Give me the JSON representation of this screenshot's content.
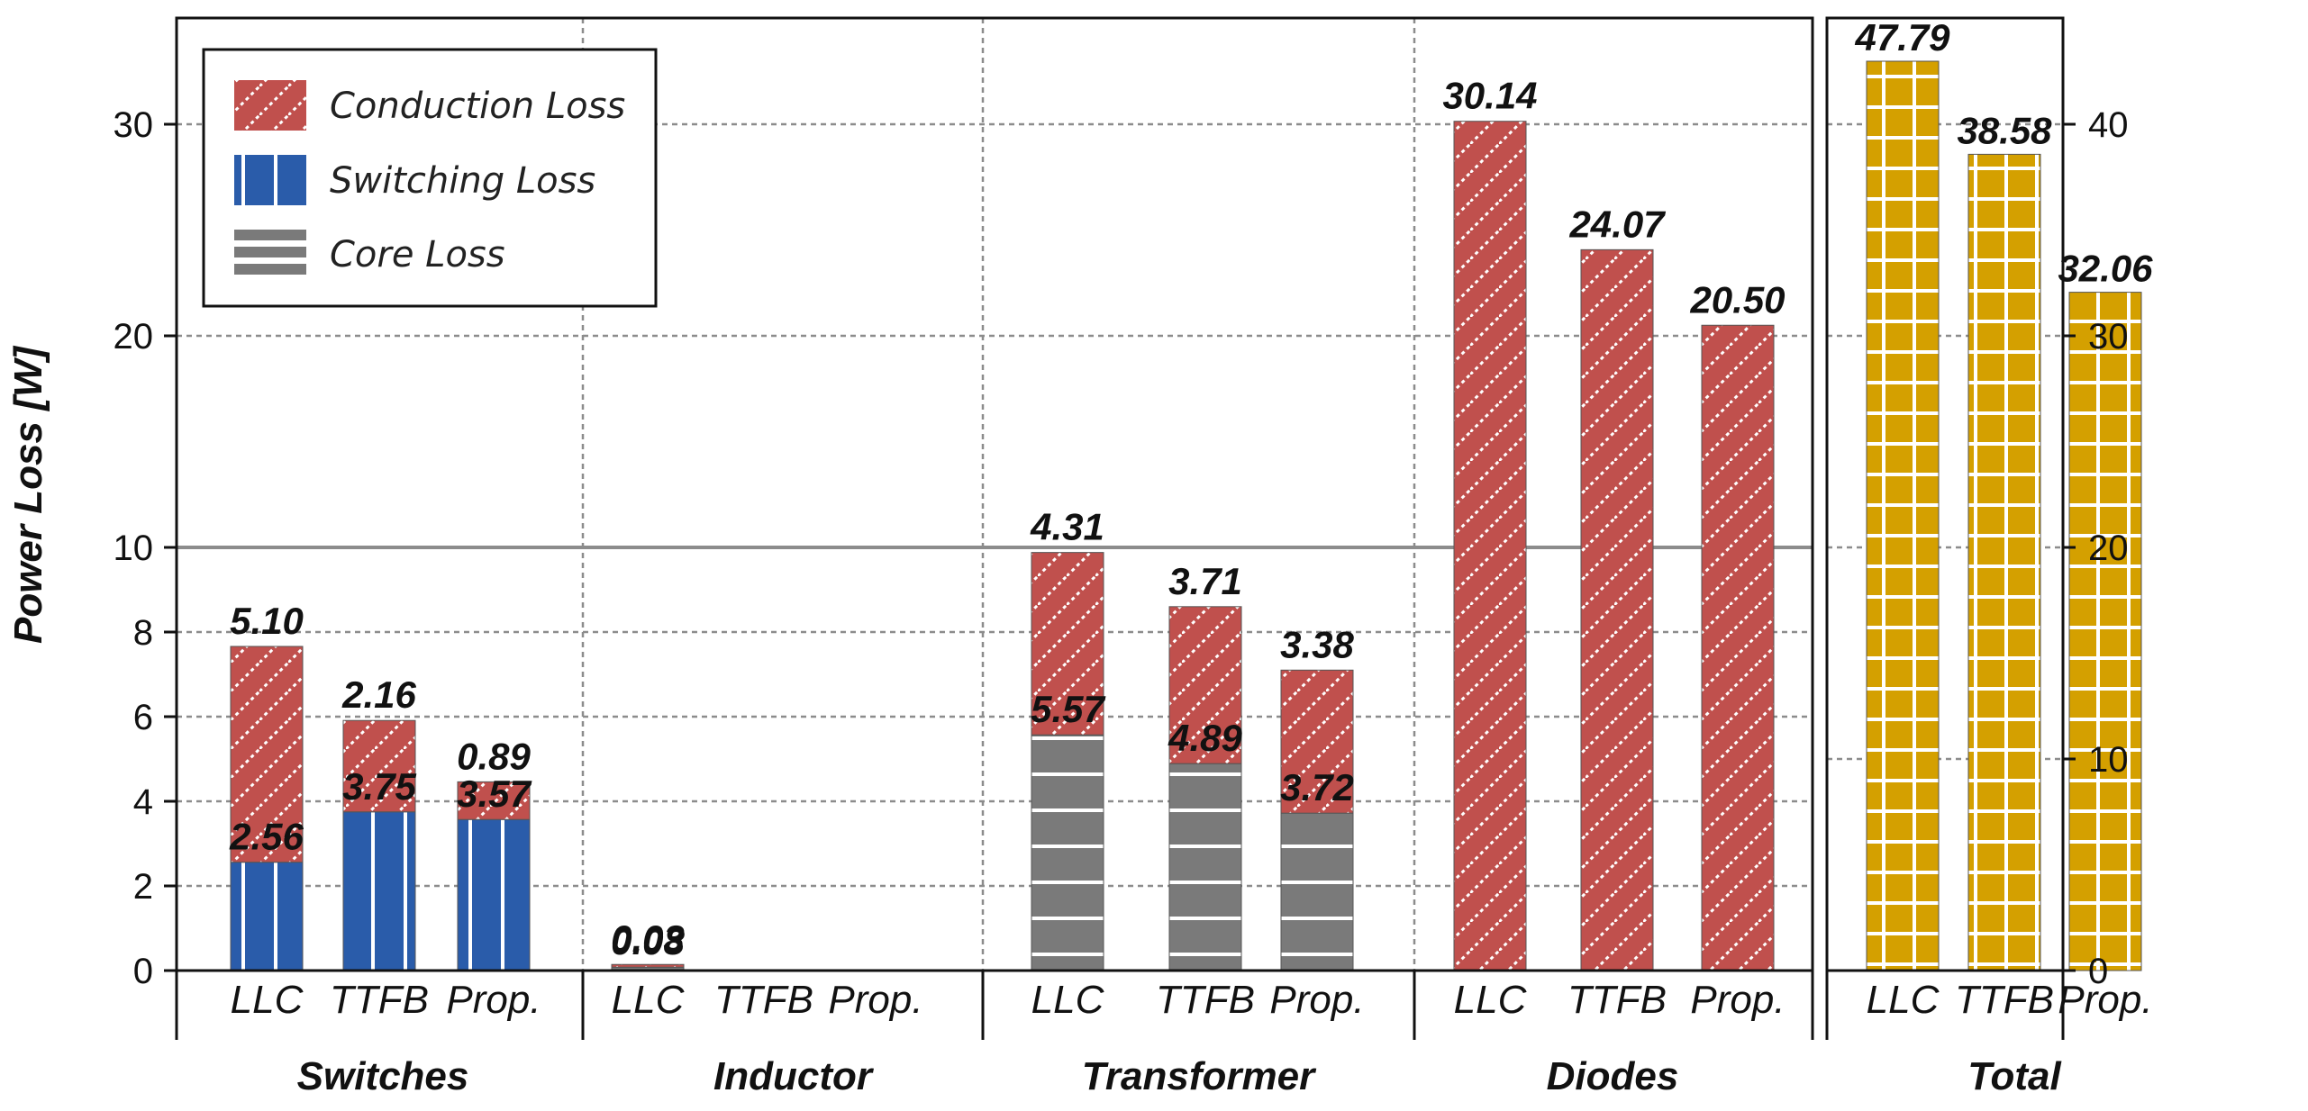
{
  "chart_data": {
    "type": "bar",
    "ylabel": "Power Loss [W]",
    "left_axis": {
      "ticks": [
        0,
        2,
        4,
        6,
        8,
        10,
        20,
        30
      ],
      "note": "broken scale: 0-10 compressed upper section 10-35"
    },
    "right_axis": {
      "ticks": [
        0,
        10,
        20,
        30,
        40
      ],
      "ylim": [
        0,
        45
      ]
    },
    "legend": {
      "placement": "top-left",
      "items": [
        {
          "name": "Conduction Loss",
          "color": "#c0504d",
          "pattern": "diagonal"
        },
        {
          "name": "Switching Loss",
          "color": "#2a5caa",
          "pattern": "vertical"
        },
        {
          "name": "Core Loss",
          "color": "#7f7f7f",
          "pattern": "horizontal"
        }
      ]
    },
    "categories": [
      "LLC",
      "TTFB",
      "Prop."
    ],
    "groups": [
      {
        "name": "Switches",
        "bars": [
          {
            "category": "LLC",
            "segments": [
              {
                "type": "Switching Loss",
                "value": 2.56
              },
              {
                "type": "Conduction Loss",
                "value": 5.1
              }
            ]
          },
          {
            "category": "TTFB",
            "segments": [
              {
                "type": "Switching Loss",
                "value": 3.75
              },
              {
                "type": "Conduction Loss",
                "value": 2.16
              }
            ]
          },
          {
            "category": "Prop.",
            "segments": [
              {
                "type": "Switching Loss",
                "value": 3.57
              },
              {
                "type": "Conduction Loss",
                "value": 0.89
              }
            ]
          }
        ]
      },
      {
        "name": "Inductor",
        "bars": [
          {
            "category": "LLC",
            "segments": [
              {
                "type": "Core Loss",
                "value": 0.08
              },
              {
                "type": "Conduction Loss",
                "value": 0.03
              }
            ]
          },
          {
            "category": "TTFB",
            "segments": []
          },
          {
            "category": "Prop.",
            "segments": []
          }
        ]
      },
      {
        "name": "Transformer",
        "bars": [
          {
            "category": "LLC",
            "segments": [
              {
                "type": "Core Loss",
                "value": 5.57
              },
              {
                "type": "Conduction Loss",
                "value": 4.31
              }
            ]
          },
          {
            "category": "TTFB",
            "segments": [
              {
                "type": "Core Loss",
                "value": 4.89
              },
              {
                "type": "Conduction Loss",
                "value": 3.71
              }
            ]
          },
          {
            "category": "Prop.",
            "segments": [
              {
                "type": "Core Loss",
                "value": 3.72
              },
              {
                "type": "Conduction Loss",
                "value": 3.38
              }
            ]
          }
        ]
      },
      {
        "name": "Diodes",
        "bars": [
          {
            "category": "LLC",
            "segments": [
              {
                "type": "Conduction Loss",
                "value": 30.14
              }
            ]
          },
          {
            "category": "TTFB",
            "segments": [
              {
                "type": "Conduction Loss",
                "value": 24.07
              }
            ]
          },
          {
            "category": "Prop.",
            "segments": [
              {
                "type": "Conduction Loss",
                "value": 20.5
              }
            ]
          }
        ]
      }
    ],
    "total": {
      "name": "Total",
      "color": "#d4a000",
      "pattern": "grid",
      "bars": [
        {
          "category": "LLC",
          "value": 47.79
        },
        {
          "category": "TTFB",
          "value": 38.58
        },
        {
          "category": "Prop.",
          "value": 32.06
        }
      ]
    },
    "grid": true
  }
}
